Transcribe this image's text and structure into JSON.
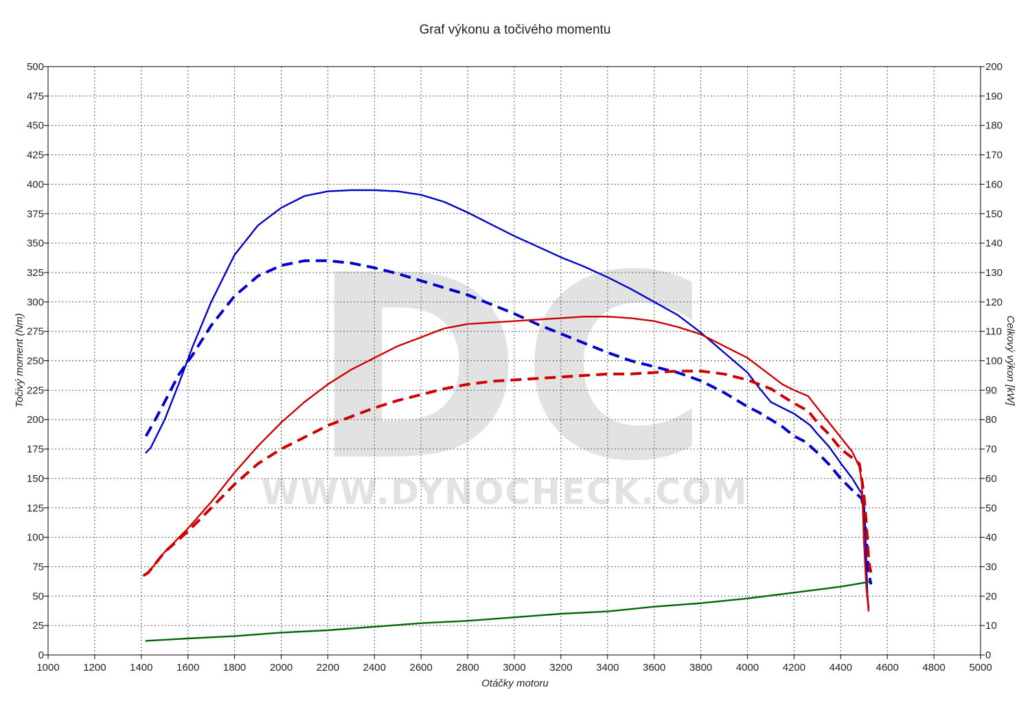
{
  "chart_data": {
    "type": "line",
    "title": "Graf výkonu a točivého momentu",
    "xlabel": "Otáčky motoru",
    "ylabel": "Točivý moment (Nm)",
    "y2label": "Celkový výkon [kW]",
    "xlim": [
      1000,
      5000
    ],
    "ylim": [
      0,
      500
    ],
    "y2lim": [
      0,
      200
    ],
    "xticks": [
      "1000",
      "1200",
      "1400",
      "1600",
      "1800",
      "2000",
      "2200",
      "2400",
      "2600",
      "2800",
      "3000",
      "3200",
      "3400",
      "3600",
      "3800",
      "4000",
      "4200",
      "4400",
      "4600",
      "4800",
      "5000"
    ],
    "yticks": [
      "0",
      "25",
      "50",
      "75",
      "100",
      "125",
      "150",
      "175",
      "200",
      "225",
      "250",
      "275",
      "300",
      "325",
      "350",
      "375",
      "400",
      "425",
      "450",
      "475",
      "500"
    ],
    "y2ticks": [
      "0",
      "10",
      "20",
      "30",
      "40",
      "50",
      "60",
      "70",
      "80",
      "90",
      "100",
      "110",
      "120",
      "130",
      "140",
      "150",
      "160",
      "170",
      "180",
      "190",
      "200"
    ],
    "grid": true,
    "watermark": {
      "logo": "DC",
      "url": "WWW.DYNOCHECK.COM"
    },
    "series": [
      {
        "color": "#0000cc",
        "dash": false,
        "axis": "left",
        "x": [
          1420,
          1440,
          1500,
          1560,
          1620,
          1700,
          1800,
          1900,
          2000,
          2100,
          2200,
          2300,
          2400,
          2500,
          2600,
          2700,
          2800,
          2900,
          3000,
          3100,
          3200,
          3300,
          3400,
          3500,
          3600,
          3700,
          3800,
          3900,
          4000,
          4050,
          4100,
          4150,
          4200,
          4250,
          4270,
          4300,
          4350,
          4400,
          4450,
          4490,
          4500,
          4505,
          4510,
          4515,
          4520
        ],
        "y": [
          172,
          176,
          200,
          230,
          262,
          300,
          340,
          365,
          380,
          390,
          394,
          395,
          395,
          394,
          391,
          385,
          376,
          366,
          356,
          347,
          338,
          330,
          321,
          311,
          300,
          289,
          274,
          257,
          240,
          227,
          215,
          210,
          205,
          198,
          195,
          188,
          177,
          163,
          150,
          137,
          128,
          110,
          80,
          50,
          40
        ]
      },
      {
        "color": "#0000cc",
        "dash": true,
        "axis": "left",
        "x": [
          1420,
          1460,
          1500,
          1560,
          1620,
          1700,
          1800,
          1900,
          2000,
          2100,
          2200,
          2300,
          2400,
          2500,
          2600,
          2700,
          2800,
          2900,
          3000,
          3100,
          3200,
          3300,
          3400,
          3500,
          3600,
          3700,
          3800,
          3900,
          4000,
          4050,
          4100,
          4150,
          4200,
          4250,
          4300,
          4350,
          4400,
          4450,
          4490,
          4500,
          4510,
          4520,
          4530
        ],
        "y": [
          186,
          200,
          215,
          238,
          255,
          280,
          305,
          322,
          331,
          335,
          335,
          333,
          329,
          324,
          318,
          312,
          306,
          298,
          290,
          281,
          273,
          265,
          257,
          250,
          245,
          240,
          233,
          223,
          211,
          206,
          200,
          194,
          186,
          181,
          172,
          162,
          150,
          140,
          133,
          120,
          100,
          70,
          60
        ]
      },
      {
        "color": "#cc0000",
        "dash": false,
        "axis": "right",
        "x": [
          1410,
          1430,
          1500,
          1600,
          1700,
          1800,
          1900,
          2000,
          2100,
          2200,
          2300,
          2400,
          2500,
          2600,
          2700,
          2800,
          2900,
          3000,
          3100,
          3200,
          3300,
          3400,
          3500,
          3600,
          3700,
          3800,
          3900,
          4000,
          4100,
          4150,
          4200,
          4260,
          4300,
          4350,
          4400,
          4450,
          4480,
          4490,
          4495,
          4500,
          4510,
          4520
        ],
        "y": [
          27,
          28,
          35,
          43,
          52,
          62,
          71,
          79,
          86,
          92,
          97,
          101,
          105,
          108,
          111,
          112.5,
          113,
          113.5,
          114,
          114.5,
          115,
          115,
          114.5,
          113.5,
          111.5,
          109,
          105,
          101,
          95,
          92,
          90,
          88,
          84,
          79,
          74,
          69,
          64,
          59,
          49,
          38,
          23,
          15
        ]
      },
      {
        "color": "#cc0000",
        "dash": true,
        "axis": "right",
        "x": [
          1410,
          1430,
          1500,
          1600,
          1700,
          1800,
          1900,
          2000,
          2100,
          2200,
          2300,
          2400,
          2500,
          2600,
          2700,
          2800,
          2900,
          3000,
          3100,
          3200,
          3300,
          3400,
          3500,
          3600,
          3700,
          3800,
          3900,
          4000,
          4100,
          4200,
          4260,
          4300,
          4350,
          4400,
          4450,
          4480,
          4490,
          4500,
          4510,
          4520,
          4525,
          4530
        ],
        "y": [
          27,
          28,
          35,
          42,
          50,
          58,
          65,
          70,
          74,
          78,
          81,
          84,
          86.5,
          88.5,
          90.5,
          92,
          93,
          93.5,
          94,
          94.5,
          95,
          95.5,
          95.5,
          96,
          96.5,
          96.5,
          95.5,
          93.5,
          90.5,
          85.5,
          83,
          79,
          75,
          70,
          67,
          65,
          60,
          54,
          45,
          33,
          30,
          28
        ]
      },
      {
        "color": "#006600",
        "dash": false,
        "axis": "left",
        "x": [
          1420,
          1600,
          1800,
          2000,
          2200,
          2400,
          2600,
          2800,
          3000,
          3200,
          3400,
          3600,
          3800,
          4000,
          4200,
          4400,
          4520
        ],
        "y": [
          12,
          14,
          16,
          19,
          21,
          24,
          27,
          29,
          32,
          35,
          37,
          41,
          44,
          48,
          53,
          58,
          62
        ]
      }
    ]
  }
}
